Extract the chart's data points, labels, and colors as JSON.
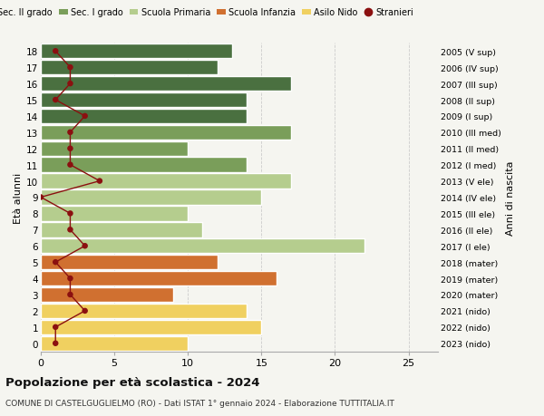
{
  "ages": [
    18,
    17,
    16,
    15,
    14,
    13,
    12,
    11,
    10,
    9,
    8,
    7,
    6,
    5,
    4,
    3,
    2,
    1,
    0
  ],
  "right_labels": [
    "2005 (V sup)",
    "2006 (IV sup)",
    "2007 (III sup)",
    "2008 (II sup)",
    "2009 (I sup)",
    "2010 (III med)",
    "2011 (II med)",
    "2012 (I med)",
    "2013 (V ele)",
    "2014 (IV ele)",
    "2015 (III ele)",
    "2016 (II ele)",
    "2017 (I ele)",
    "2018 (mater)",
    "2019 (mater)",
    "2020 (mater)",
    "2021 (nido)",
    "2022 (nido)",
    "2023 (nido)"
  ],
  "bar_values": [
    13,
    12,
    17,
    14,
    14,
    17,
    10,
    14,
    17,
    15,
    10,
    11,
    22,
    12,
    16,
    9,
    14,
    15,
    10
  ],
  "bar_colors": [
    "#4a7040",
    "#4a7040",
    "#4a7040",
    "#4a7040",
    "#4a7040",
    "#7a9e5a",
    "#7a9e5a",
    "#7a9e5a",
    "#b5cd8e",
    "#b5cd8e",
    "#b5cd8e",
    "#b5cd8e",
    "#b5cd8e",
    "#d07030",
    "#d07030",
    "#d07030",
    "#f0d060",
    "#f0d060",
    "#f0d060"
  ],
  "stranieri_values": [
    1,
    2,
    2,
    1,
    3,
    2,
    2,
    2,
    4,
    0,
    2,
    2,
    3,
    1,
    2,
    2,
    3,
    1,
    1
  ],
  "stranieri_color": "#8b1010",
  "xlim": [
    0,
    27
  ],
  "xticks": [
    0,
    5,
    10,
    15,
    20,
    25
  ],
  "ylabel": "Età alunni",
  "ylabel2": "Anni di nascita",
  "title": "Popolazione per età scolastica - 2024",
  "subtitle": "COMUNE DI CASTELGUGLIELMO (RO) - Dati ISTAT 1° gennaio 2024 - Elaborazione TUTTITALIA.IT",
  "legend_labels": [
    "Sec. II grado",
    "Sec. I grado",
    "Scuola Primaria",
    "Scuola Infanzia",
    "Asilo Nido",
    "Stranieri"
  ],
  "legend_colors": [
    "#4a7040",
    "#7a9e5a",
    "#b5cd8e",
    "#d07030",
    "#f0d060",
    "#8b1010"
  ],
  "bg_color": "#f5f5f0",
  "grid_color": "#cccccc",
  "bar_edge_color": "white",
  "bar_height": 0.92
}
